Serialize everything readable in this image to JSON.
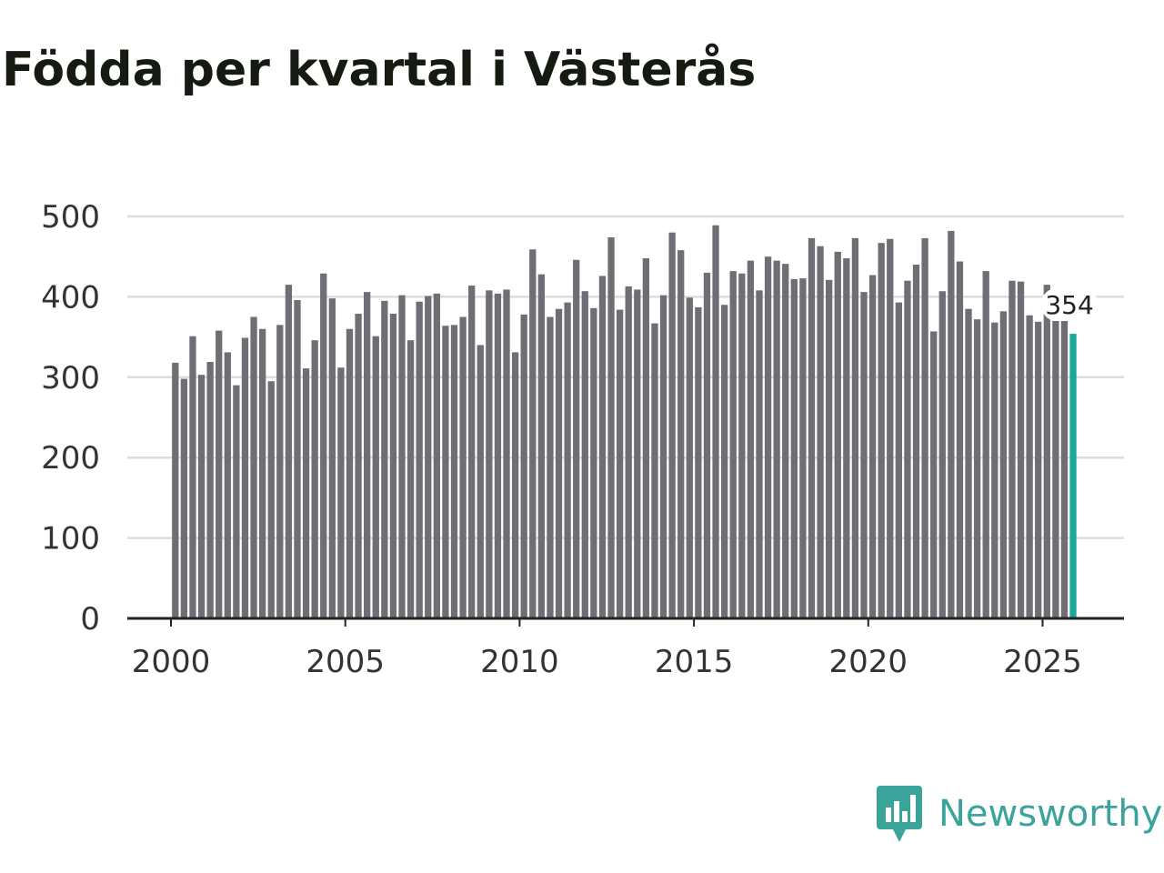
{
  "title": "Födda per kvartal i Västerås",
  "brand": {
    "name": "Newsworthy",
    "icon": "newsworthy-logo-icon",
    "color": "#3aa39a"
  },
  "chart_data": {
    "type": "bar",
    "title": "Födda per kvartal i Västerås",
    "xlabel": "",
    "ylabel": "",
    "ylim": [
      0,
      500
    ],
    "yticks": [
      "0",
      "100",
      "200",
      "300",
      "400",
      "500"
    ],
    "xticks": [
      "2000",
      "2005",
      "2010",
      "2015",
      "2020",
      "2025"
    ],
    "xtick_values": [
      2000,
      2005,
      2010,
      2015,
      2020,
      2025
    ],
    "x_start": 2000.125,
    "x_step": 0.25,
    "bar_color": "#6f6e74",
    "highlight_color": "#1aa898",
    "grid": true,
    "highlight_label": "354",
    "values": [
      318,
      298,
      351,
      303,
      319,
      358,
      331,
      290,
      349,
      375,
      360,
      295,
      365,
      415,
      396,
      311,
      346,
      429,
      398,
      312,
      360,
      379,
      406,
      351,
      395,
      379,
      402,
      346,
      394,
      401,
      404,
      364,
      365,
      375,
      414,
      340,
      408,
      404,
      409,
      331,
      378,
      459,
      428,
      375,
      385,
      393,
      446,
      407,
      386,
      426,
      474,
      384,
      413,
      409,
      448,
      367,
      402,
      480,
      458,
      399,
      387,
      430,
      489,
      390,
      432,
      429,
      445,
      408,
      450,
      445,
      441,
      422,
      423,
      473,
      463,
      421,
      456,
      448,
      473,
      406,
      427,
      467,
      472,
      393,
      420,
      440,
      473,
      357,
      407,
      482,
      444,
      385,
      372,
      432,
      368,
      382,
      420,
      419,
      377,
      369,
      415,
      370,
      372,
      354
    ]
  }
}
